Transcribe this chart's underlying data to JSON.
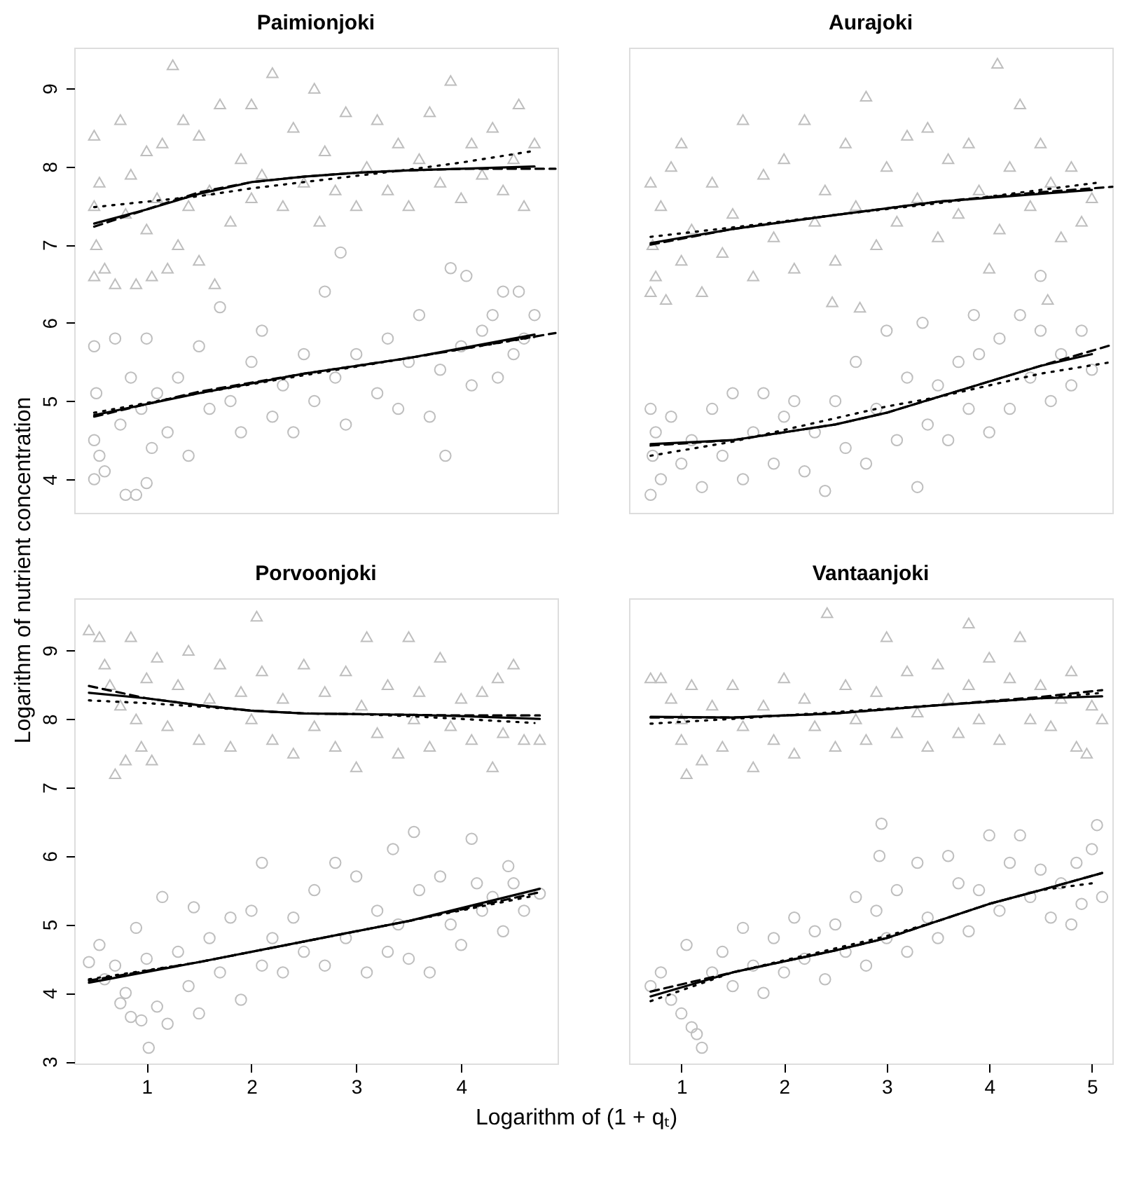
{
  "chart_data": [
    {
      "type": "scatter",
      "title": "Paimionjoki",
      "ylabel": "Logarithm of nutrient concentration",
      "xlim": [
        0.31,
        4.92
      ],
      "ylim": [
        3.57,
        9.52
      ],
      "xticks": [
        1,
        2,
        3,
        4
      ],
      "yticks": [
        4,
        5,
        6,
        7,
        8,
        9
      ],
      "tick_labels": "y",
      "grid": false,
      "series": [
        {
          "type": "scatter",
          "marker": "triangle",
          "color": "#bebebe",
          "x": [
            0.5,
            0.5,
            0.5,
            0.52,
            0.55,
            0.6,
            0.7,
            0.75,
            0.8,
            0.85,
            0.9,
            1.0,
            1.0,
            1.05,
            1.1,
            1.15,
            1.2,
            1.25,
            1.3,
            1.35,
            1.4,
            1.5,
            1.5,
            1.6,
            1.65,
            1.7,
            1.8,
            1.9,
            2.0,
            2.0,
            2.1,
            2.2,
            2.3,
            2.4,
            2.5,
            2.6,
            2.65,
            2.7,
            2.8,
            2.9,
            3.0,
            3.1,
            3.2,
            3.3,
            3.4,
            3.5,
            3.6,
            3.7,
            3.8,
            3.9,
            4.0,
            4.1,
            4.2,
            4.3,
            4.4,
            4.5,
            4.55,
            4.6,
            4.7
          ],
          "values": [
            7.5,
            8.4,
            6.6,
            7.0,
            7.8,
            6.7,
            6.5,
            8.6,
            7.4,
            7.9,
            6.5,
            7.2,
            8.2,
            6.6,
            7.6,
            8.3,
            6.7,
            9.3,
            7.0,
            8.6,
            7.5,
            6.8,
            8.4,
            7.7,
            6.5,
            8.8,
            7.3,
            8.1,
            7.6,
            8.8,
            7.9,
            9.2,
            7.5,
            8.5,
            7.8,
            9.0,
            7.3,
            8.2,
            7.7,
            8.7,
            7.5,
            8.0,
            8.6,
            7.7,
            8.3,
            7.5,
            8.1,
            8.7,
            7.8,
            9.1,
            7.6,
            8.3,
            7.9,
            8.5,
            7.7,
            8.1,
            8.8,
            7.5,
            8.3
          ]
        },
        {
          "type": "scatter",
          "marker": "circle",
          "color": "#bebebe",
          "x": [
            0.5,
            0.5,
            0.5,
            0.52,
            0.55,
            0.6,
            0.7,
            0.75,
            0.8,
            0.85,
            0.9,
            0.95,
            1.0,
            1.0,
            1.05,
            1.1,
            1.2,
            1.3,
            1.4,
            1.5,
            1.6,
            1.7,
            1.8,
            1.9,
            2.0,
            2.1,
            2.2,
            2.3,
            2.4,
            2.5,
            2.6,
            2.7,
            2.8,
            2.85,
            2.9,
            3.0,
            3.2,
            3.3,
            3.4,
            3.5,
            3.6,
            3.7,
            3.8,
            3.85,
            3.9,
            4.0,
            4.05,
            4.1,
            4.2,
            4.3,
            4.35,
            4.4,
            4.5,
            4.55,
            4.6,
            4.7
          ],
          "values": [
            4.0,
            5.7,
            4.5,
            5.1,
            4.3,
            4.1,
            5.8,
            4.7,
            3.8,
            5.3,
            3.8,
            4.9,
            5.8,
            3.95,
            4.4,
            5.1,
            4.6,
            5.3,
            4.3,
            5.7,
            4.9,
            6.2,
            5.0,
            4.6,
            5.5,
            5.9,
            4.8,
            5.2,
            4.6,
            5.6,
            5.0,
            6.4,
            5.3,
            6.9,
            4.7,
            5.6,
            5.1,
            5.8,
            4.9,
            5.5,
            6.1,
            4.8,
            5.4,
            4.3,
            6.7,
            5.7,
            6.6,
            5.2,
            5.9,
            6.1,
            5.3,
            6.4,
            5.6,
            6.4,
            5.8,
            6.1
          ]
        },
        {
          "type": "line",
          "line_style": "solid",
          "color": "#000000",
          "x": [
            0.5,
            1,
            1.5,
            2,
            2.5,
            3,
            3.5,
            4,
            4.7
          ],
          "values": [
            7.27,
            7.45,
            7.65,
            7.8,
            7.87,
            7.92,
            7.95,
            7.97,
            8.0
          ]
        },
        {
          "type": "line",
          "line_style": "dashed",
          "color": "#000000",
          "x": [
            0.5,
            1,
            1.5,
            2,
            2.5,
            3,
            3.5,
            4,
            4.9
          ],
          "values": [
            7.23,
            7.45,
            7.67,
            7.8,
            7.87,
            7.92,
            7.95,
            7.97,
            7.97
          ]
        },
        {
          "type": "line",
          "line_style": "dotted",
          "color": "#000000",
          "x": [
            0.5,
            1,
            1.5,
            2,
            2.5,
            3,
            3.5,
            4,
            4.7
          ],
          "values": [
            7.48,
            7.55,
            7.62,
            7.72,
            7.8,
            7.88,
            7.96,
            8.05,
            8.2
          ]
        },
        {
          "type": "line",
          "line_style": "solid",
          "color": "#000000",
          "x": [
            0.5,
            1.5,
            2.5,
            3.5,
            4.7
          ],
          "values": [
            4.82,
            5.1,
            5.35,
            5.55,
            5.85
          ]
        },
        {
          "type": "line",
          "line_style": "dashed",
          "color": "#000000",
          "x": [
            0.5,
            1.5,
            2.5,
            3.5,
            4.9
          ],
          "values": [
            4.8,
            5.12,
            5.35,
            5.55,
            5.87
          ]
        },
        {
          "type": "line",
          "line_style": "dotted",
          "color": "#000000",
          "x": [
            0.5,
            1.5,
            2.5,
            3.5,
            4.7
          ],
          "values": [
            4.85,
            5.1,
            5.33,
            5.55,
            5.82
          ]
        }
      ]
    },
    {
      "type": "scatter",
      "title": "Aurajoki",
      "xlim": [
        0.49,
        5.2
      ],
      "ylim": [
        3.57,
        9.52
      ],
      "xticks": [
        1,
        2,
        3,
        4,
        5
      ],
      "yticks": [
        4,
        5,
        6,
        7,
        8,
        9
      ],
      "tick_labels": false,
      "grid": false,
      "series": [
        {
          "type": "scatter",
          "marker": "triangle",
          "color": "#bebebe",
          "x": [
            0.7,
            0.7,
            0.72,
            0.75,
            0.8,
            0.85,
            0.9,
            1.0,
            1.0,
            1.1,
            1.2,
            1.3,
            1.4,
            1.5,
            1.6,
            1.7,
            1.8,
            1.9,
            2.0,
            2.1,
            2.2,
            2.3,
            2.4,
            2.47,
            2.5,
            2.6,
            2.7,
            2.74,
            2.8,
            2.9,
            3.0,
            3.1,
            3.2,
            3.3,
            3.4,
            3.5,
            3.6,
            3.7,
            3.8,
            3.9,
            4.0,
            4.08,
            4.1,
            4.2,
            4.3,
            4.4,
            4.5,
            4.57,
            4.6,
            4.7,
            4.8,
            4.9,
            5.0
          ],
          "values": [
            6.4,
            7.8,
            7.0,
            6.6,
            7.5,
            6.3,
            8.0,
            6.8,
            8.3,
            7.2,
            6.4,
            7.8,
            6.9,
            7.4,
            8.6,
            6.6,
            7.9,
            7.1,
            8.1,
            6.7,
            8.6,
            7.3,
            7.7,
            6.27,
            6.8,
            8.3,
            7.5,
            6.2,
            8.9,
            7.0,
            8.0,
            7.3,
            8.4,
            7.6,
            8.5,
            7.1,
            8.1,
            7.4,
            8.3,
            7.7,
            6.7,
            9.32,
            7.2,
            8.0,
            8.8,
            7.5,
            8.3,
            6.3,
            7.8,
            7.1,
            8.0,
            7.3,
            7.6
          ]
        },
        {
          "type": "scatter",
          "marker": "circle",
          "color": "#bebebe",
          "x": [
            0.7,
            0.7,
            0.72,
            0.75,
            0.8,
            0.9,
            1.0,
            1.1,
            1.2,
            1.3,
            1.4,
            1.5,
            1.6,
            1.7,
            1.8,
            1.9,
            2.0,
            2.1,
            2.2,
            2.3,
            2.4,
            2.5,
            2.6,
            2.7,
            2.8,
            2.9,
            3.0,
            3.1,
            3.2,
            3.3,
            3.35,
            3.4,
            3.5,
            3.6,
            3.7,
            3.8,
            3.85,
            3.9,
            4.0,
            4.1,
            4.2,
            4.3,
            4.4,
            4.5,
            4.5,
            4.6,
            4.7,
            4.8,
            4.9,
            5.0
          ],
          "values": [
            3.8,
            4.9,
            4.3,
            4.6,
            4.0,
            4.8,
            4.2,
            4.5,
            3.9,
            4.9,
            4.3,
            5.1,
            4.0,
            4.6,
            5.1,
            4.2,
            4.8,
            5.0,
            4.1,
            4.6,
            3.85,
            5.0,
            4.4,
            5.5,
            4.2,
            4.9,
            5.9,
            4.5,
            5.3,
            3.9,
            6.0,
            4.7,
            5.2,
            4.5,
            5.5,
            4.9,
            6.1,
            5.6,
            4.6,
            5.8,
            4.9,
            6.1,
            5.3,
            5.9,
            6.6,
            5.0,
            5.6,
            5.2,
            5.9,
            5.4
          ]
        },
        {
          "type": "line",
          "line_style": "solid",
          "color": "#000000",
          "x": [
            0.7,
            1.5,
            2.5,
            3.5,
            4.5,
            5.0
          ],
          "values": [
            7.02,
            7.2,
            7.38,
            7.55,
            7.65,
            7.7
          ]
        },
        {
          "type": "line",
          "line_style": "dashed",
          "color": "#000000",
          "x": [
            0.7,
            1.5,
            2.5,
            3.5,
            4.5,
            5.2
          ],
          "values": [
            7.0,
            7.2,
            7.38,
            7.55,
            7.67,
            7.74
          ]
        },
        {
          "type": "line",
          "line_style": "dotted",
          "color": "#000000",
          "x": [
            0.7,
            1.5,
            2.5,
            3.5,
            4.5,
            5.1
          ],
          "values": [
            7.1,
            7.22,
            7.38,
            7.53,
            7.7,
            7.8
          ]
        },
        {
          "type": "line",
          "line_style": "solid",
          "color": "#000000",
          "x": [
            0.7,
            1.5,
            2.5,
            3.0,
            3.5,
            4.0,
            4.5,
            5.0
          ],
          "values": [
            4.45,
            4.5,
            4.7,
            4.85,
            5.05,
            5.25,
            5.45,
            5.6
          ]
        },
        {
          "type": "line",
          "line_style": "dashed",
          "color": "#000000",
          "x": [
            0.7,
            1.5,
            2.5,
            3.0,
            3.5,
            4.0,
            4.5,
            5.2
          ],
          "values": [
            4.43,
            4.5,
            4.7,
            4.85,
            5.05,
            5.25,
            5.45,
            5.72
          ]
        },
        {
          "type": "line",
          "line_style": "dotted",
          "color": "#000000",
          "x": [
            0.7,
            1.5,
            2.5,
            3.0,
            3.5,
            4.0,
            4.5,
            5.2
          ],
          "values": [
            4.3,
            4.48,
            4.78,
            4.93,
            5.05,
            5.2,
            5.35,
            5.5
          ]
        }
      ]
    },
    {
      "type": "scatter",
      "title": "Porvoonjoki",
      "xlabel": "Logarithm of (1 + qₜ)",
      "xlim": [
        0.31,
        4.92
      ],
      "ylim": [
        2.97,
        9.76
      ],
      "xticks": [
        1,
        2,
        3,
        4
      ],
      "yticks": [
        3,
        4,
        5,
        6,
        7,
        8,
        9
      ],
      "grid": false,
      "series": [
        {
          "type": "scatter",
          "marker": "triangle",
          "color": "#bebebe",
          "x": [
            0.45,
            0.55,
            0.6,
            0.65,
            0.7,
            0.75,
            0.8,
            0.85,
            0.9,
            0.95,
            1.0,
            1.05,
            1.1,
            1.2,
            1.3,
            1.4,
            1.5,
            1.6,
            1.7,
            1.8,
            1.9,
            2.0,
            2.05,
            2.1,
            2.2,
            2.3,
            2.4,
            2.5,
            2.6,
            2.7,
            2.8,
            2.9,
            3.0,
            3.05,
            3.1,
            3.2,
            3.3,
            3.4,
            3.5,
            3.55,
            3.6,
            3.7,
            3.8,
            3.9,
            4.0,
            4.1,
            4.2,
            4.3,
            4.35,
            4.4,
            4.5,
            4.6,
            4.75
          ],
          "values": [
            9.3,
            9.2,
            8.8,
            8.5,
            7.2,
            8.2,
            7.4,
            9.2,
            8.0,
            7.6,
            8.6,
            7.4,
            8.9,
            7.9,
            8.5,
            9.0,
            7.7,
            8.3,
            8.8,
            7.6,
            8.4,
            8.0,
            9.5,
            8.7,
            7.7,
            8.3,
            7.5,
            8.8,
            7.9,
            8.4,
            7.6,
            8.7,
            7.3,
            8.2,
            9.2,
            7.8,
            8.5,
            7.5,
            9.2,
            8.0,
            8.4,
            7.6,
            8.9,
            7.9,
            8.3,
            7.7,
            8.4,
            7.3,
            8.6,
            7.8,
            8.8,
            7.7,
            7.7
          ]
        },
        {
          "type": "scatter",
          "marker": "circle",
          "color": "#bebebe",
          "x": [
            0.45,
            0.55,
            0.6,
            0.7,
            0.75,
            0.8,
            0.85,
            0.9,
            0.95,
            1.0,
            1.02,
            1.1,
            1.15,
            1.2,
            1.3,
            1.4,
            1.45,
            1.5,
            1.6,
            1.7,
            1.8,
            1.9,
            2.0,
            2.1,
            2.1,
            2.2,
            2.3,
            2.4,
            2.5,
            2.6,
            2.7,
            2.8,
            2.9,
            3.0,
            3.1,
            3.2,
            3.3,
            3.35,
            3.4,
            3.5,
            3.55,
            3.6,
            3.7,
            3.8,
            3.9,
            4.0,
            4.1,
            4.15,
            4.2,
            4.3,
            4.4,
            4.45,
            4.5,
            4.6,
            4.75
          ],
          "values": [
            4.45,
            4.7,
            4.2,
            4.4,
            3.85,
            4.0,
            3.65,
            4.95,
            3.6,
            4.5,
            3.2,
            3.8,
            5.4,
            3.55,
            4.6,
            4.1,
            5.25,
            3.7,
            4.8,
            4.3,
            5.1,
            3.9,
            5.2,
            4.4,
            5.9,
            4.8,
            4.3,
            5.1,
            4.6,
            5.5,
            4.4,
            5.9,
            4.8,
            5.7,
            4.3,
            5.2,
            4.6,
            6.1,
            5.0,
            4.5,
            6.35,
            5.5,
            4.3,
            5.7,
            5.0,
            4.7,
            6.25,
            5.6,
            5.2,
            5.4,
            4.9,
            5.85,
            5.6,
            5.2,
            5.45
          ]
        },
        {
          "type": "line",
          "line_style": "solid",
          "color": "#000000",
          "x": [
            0.45,
            1,
            1.5,
            2,
            2.5,
            3,
            3.5,
            4,
            4.75
          ],
          "values": [
            8.38,
            8.3,
            8.2,
            8.12,
            8.08,
            8.07,
            8.06,
            8.04,
            8.0
          ]
        },
        {
          "type": "line",
          "line_style": "dashed",
          "color": "#000000",
          "x": [
            0.45,
            1,
            1.5,
            2,
            2.5,
            3,
            3.5,
            4,
            4.75
          ],
          "values": [
            8.48,
            8.3,
            8.2,
            8.12,
            8.08,
            8.07,
            8.06,
            8.05,
            8.05
          ]
        },
        {
          "type": "line",
          "line_style": "dotted",
          "color": "#000000",
          "x": [
            0.45,
            1,
            1.5,
            2,
            2.5,
            3,
            3.5,
            4,
            4.7
          ],
          "values": [
            8.27,
            8.23,
            8.18,
            8.12,
            8.08,
            8.07,
            8.04,
            8.0,
            7.94
          ]
        },
        {
          "type": "line",
          "line_style": "solid",
          "color": "#000000",
          "x": [
            0.45,
            1.5,
            2.5,
            3.5,
            4.75
          ],
          "values": [
            4.15,
            4.45,
            4.75,
            5.05,
            5.52
          ]
        },
        {
          "type": "line",
          "line_style": "dashed",
          "color": "#000000",
          "x": [
            0.45,
            1.5,
            2.5,
            3.5,
            4.75
          ],
          "values": [
            4.18,
            4.45,
            4.75,
            5.05,
            5.47
          ]
        },
        {
          "type": "line",
          "line_style": "dotted",
          "color": "#000000",
          "x": [
            0.45,
            1.5,
            2.5,
            3.5,
            4.7
          ],
          "values": [
            4.2,
            4.45,
            4.75,
            5.05,
            5.42
          ]
        }
      ]
    },
    {
      "type": "scatter",
      "title": "Vantaanjoki",
      "xlim": [
        0.49,
        5.2
      ],
      "ylim": [
        2.97,
        9.76
      ],
      "xticks": [
        1,
        2,
        3,
        4,
        5
      ],
      "yticks": [
        3,
        4,
        5,
        6,
        7,
        8,
        9
      ],
      "tick_labels": "x",
      "grid": false,
      "series": [
        {
          "type": "scatter",
          "marker": "triangle",
          "color": "#bebebe",
          "x": [
            0.7,
            0.8,
            0.9,
            1.0,
            1.0,
            1.05,
            1.1,
            1.2,
            1.3,
            1.4,
            1.5,
            1.6,
            1.7,
            1.8,
            1.9,
            2.0,
            2.1,
            2.2,
            2.3,
            2.42,
            2.5,
            2.6,
            2.7,
            2.8,
            2.9,
            3.0,
            3.1,
            3.2,
            3.3,
            3.4,
            3.5,
            3.6,
            3.7,
            3.8,
            3.8,
            3.9,
            4.0,
            4.1,
            4.2,
            4.3,
            4.4,
            4.5,
            4.6,
            4.7,
            4.8,
            4.85,
            4.95,
            5.0,
            5.1
          ],
          "values": [
            8.6,
            8.6,
            8.3,
            7.7,
            8.0,
            7.2,
            8.5,
            7.4,
            8.2,
            7.6,
            8.5,
            7.9,
            7.3,
            8.2,
            7.7,
            8.6,
            7.5,
            8.3,
            7.9,
            9.55,
            7.6,
            8.5,
            8.0,
            7.7,
            8.4,
            9.2,
            7.8,
            8.7,
            8.1,
            7.6,
            8.8,
            8.3,
            7.8,
            8.5,
            9.4,
            8.0,
            8.9,
            7.7,
            8.6,
            9.2,
            8.0,
            8.5,
            7.9,
            8.3,
            8.7,
            7.6,
            7.5,
            8.2,
            8.0
          ]
        },
        {
          "type": "scatter",
          "marker": "circle",
          "color": "#bebebe",
          "x": [
            0.7,
            0.8,
            0.9,
            1.0,
            1.05,
            1.1,
            1.15,
            1.2,
            1.3,
            1.4,
            1.5,
            1.6,
            1.7,
            1.8,
            1.9,
            2.0,
            2.1,
            2.2,
            2.3,
            2.4,
            2.5,
            2.6,
            2.7,
            2.8,
            2.9,
            2.93,
            2.95,
            3.0,
            3.1,
            3.2,
            3.3,
            3.4,
            3.5,
            3.6,
            3.7,
            3.8,
            3.9,
            4.0,
            4.1,
            4.2,
            4.3,
            4.4,
            4.5,
            4.6,
            4.7,
            4.8,
            4.85,
            4.9,
            5.0,
            5.05,
            5.1
          ],
          "values": [
            4.1,
            4.3,
            3.9,
            3.7,
            4.7,
            3.5,
            3.4,
            3.2,
            4.3,
            4.6,
            4.1,
            4.95,
            4.4,
            4.0,
            4.8,
            4.3,
            5.1,
            4.5,
            4.9,
            4.2,
            5.0,
            4.6,
            5.4,
            4.4,
            5.2,
            6.0,
            6.47,
            4.8,
            5.5,
            4.6,
            5.9,
            5.1,
            4.8,
            6.0,
            5.6,
            4.9,
            5.5,
            6.3,
            5.2,
            5.9,
            6.3,
            5.4,
            5.8,
            5.1,
            5.6,
            5.0,
            5.9,
            5.3,
            6.1,
            6.45,
            5.4
          ]
        },
        {
          "type": "line",
          "line_style": "solid",
          "color": "#000000",
          "x": [
            0.7,
            1.5,
            2.5,
            3.5,
            4.5,
            5.1
          ],
          "values": [
            8.03,
            8.02,
            8.08,
            8.2,
            8.3,
            8.33
          ]
        },
        {
          "type": "line",
          "line_style": "dashed",
          "color": "#000000",
          "x": [
            0.7,
            1.5,
            2.5,
            3.5,
            4.5,
            5.1
          ],
          "values": [
            8.02,
            8.02,
            8.08,
            8.2,
            8.32,
            8.42
          ]
        },
        {
          "type": "line",
          "line_style": "dotted",
          "color": "#000000",
          "x": [
            0.7,
            1.5,
            2.5,
            3.5,
            4.5,
            5.1
          ],
          "values": [
            7.93,
            8.0,
            8.1,
            8.2,
            8.3,
            8.38
          ]
        },
        {
          "type": "line",
          "line_style": "solid",
          "color": "#000000",
          "x": [
            0.7,
            1.5,
            2.5,
            3.0,
            3.5,
            4.0,
            4.5,
            5.1
          ],
          "values": [
            3.95,
            4.3,
            4.62,
            4.8,
            5.05,
            5.3,
            5.5,
            5.75
          ]
        },
        {
          "type": "line",
          "line_style": "dashed",
          "color": "#000000",
          "x": [
            0.7,
            1.5,
            2.5,
            3.0,
            3.5,
            4.0,
            4.5,
            5.1
          ],
          "values": [
            4.02,
            4.3,
            4.62,
            4.8,
            5.05,
            5.3,
            5.5,
            5.75
          ]
        },
        {
          "type": "line",
          "line_style": "dotted",
          "color": "#000000",
          "x": [
            0.7,
            1.5,
            2.5,
            3.0,
            3.5,
            4.0,
            4.5,
            5.0
          ],
          "values": [
            3.88,
            4.3,
            4.65,
            4.83,
            5.05,
            5.3,
            5.5,
            5.6
          ]
        }
      ]
    }
  ]
}
